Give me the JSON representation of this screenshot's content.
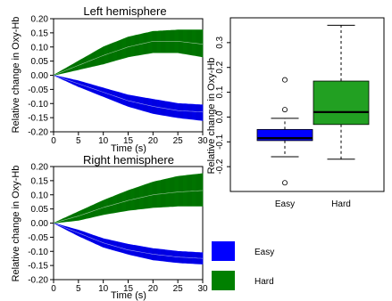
{
  "chart_data": [
    {
      "type": "line",
      "title": "Left hemisphere",
      "xlabel": "Time (s)",
      "ylabel": "Relative change in Oxy-Hb",
      "xlim": [
        0,
        30
      ],
      "ylim": [
        -0.2,
        0.2
      ],
      "xticks": [
        "0",
        "5",
        "10",
        "15",
        "20",
        "25",
        "30"
      ],
      "yticks": [
        "0.20",
        "0.15",
        "0.10",
        "0.05",
        "0.00",
        "-0.05",
        "-0.10",
        "-0.15",
        "-0.20"
      ],
      "x": [
        0,
        5,
        10,
        15,
        20,
        25,
        30
      ],
      "series": [
        {
          "name": "Easy",
          "color": "#0000ff",
          "mean": [
            0,
            -0.03,
            -0.06,
            -0.09,
            -0.11,
            -0.125,
            -0.13
          ],
          "upper": [
            0,
            -0.02,
            -0.045,
            -0.07,
            -0.085,
            -0.1,
            -0.105
          ],
          "lower": [
            0,
            -0.04,
            -0.075,
            -0.11,
            -0.135,
            -0.15,
            -0.16
          ]
        },
        {
          "name": "Hard",
          "color": "#008000",
          "mean": [
            0,
            0.035,
            0.07,
            0.1,
            0.12,
            0.12,
            0.11
          ],
          "upper": [
            0,
            0.05,
            0.1,
            0.135,
            0.155,
            0.16,
            0.16
          ],
          "lower": [
            0,
            0.02,
            0.04,
            0.065,
            0.08,
            0.08,
            0.065
          ]
        }
      ]
    },
    {
      "type": "line",
      "title": "Right hemisphere",
      "xlabel": "Time (s)",
      "ylabel": "Relative change in Oxy-Hb",
      "xlim": [
        0,
        30
      ],
      "ylim": [
        -0.2,
        0.2
      ],
      "xticks": [
        "0",
        "5",
        "10",
        "15",
        "20",
        "25",
        "30"
      ],
      "yticks": [
        "0.20",
        "0.15",
        "0.10",
        "0.05",
        "0.00",
        "-0.05",
        "-0.10",
        "-0.15",
        "-0.20"
      ],
      "x": [
        0,
        5,
        10,
        15,
        20,
        25,
        30
      ],
      "series": [
        {
          "name": "Easy",
          "color": "#0000ff",
          "mean": [
            0,
            -0.035,
            -0.07,
            -0.095,
            -0.11,
            -0.12,
            -0.125
          ],
          "upper": [
            0,
            -0.025,
            -0.055,
            -0.075,
            -0.09,
            -0.1,
            -0.105
          ],
          "lower": [
            0,
            -0.045,
            -0.085,
            -0.11,
            -0.13,
            -0.14,
            -0.145
          ]
        },
        {
          "name": "Hard",
          "color": "#008000",
          "mean": [
            0,
            0.025,
            0.055,
            0.08,
            0.1,
            0.11,
            0.115
          ],
          "upper": [
            0,
            0.04,
            0.08,
            0.115,
            0.145,
            0.165,
            0.175
          ],
          "lower": [
            0,
            0.01,
            0.03,
            0.045,
            0.055,
            0.06,
            0.06
          ]
        }
      ]
    },
    {
      "type": "box",
      "ylabel": "Relative change in Oxy-Hb",
      "ylim": [
        -0.3,
        0.4
      ],
      "yticks": [
        "0.3",
        "0.2",
        "0.1",
        "0.0",
        "-0.1",
        "-0.2"
      ],
      "categories": [
        "Easy",
        "Hard"
      ],
      "boxes": [
        {
          "name": "Easy",
          "color": "#0000ff",
          "whisker_low": -0.16,
          "q1": -0.095,
          "median": -0.085,
          "q3": -0.05,
          "whisker_high": -0.005,
          "outliers": [
            0.15,
            0.03,
            -0.265
          ]
        },
        {
          "name": "Hard",
          "color": "#22a022",
          "whisker_low": -0.17,
          "q1": -0.03,
          "median": 0.02,
          "q3": 0.145,
          "whisker_high": 0.37,
          "outliers": []
        }
      ]
    }
  ],
  "legend": {
    "items": [
      {
        "label": "Easy",
        "color": "#0000ff"
      },
      {
        "label": "Hard",
        "color": "#008000"
      }
    ]
  }
}
